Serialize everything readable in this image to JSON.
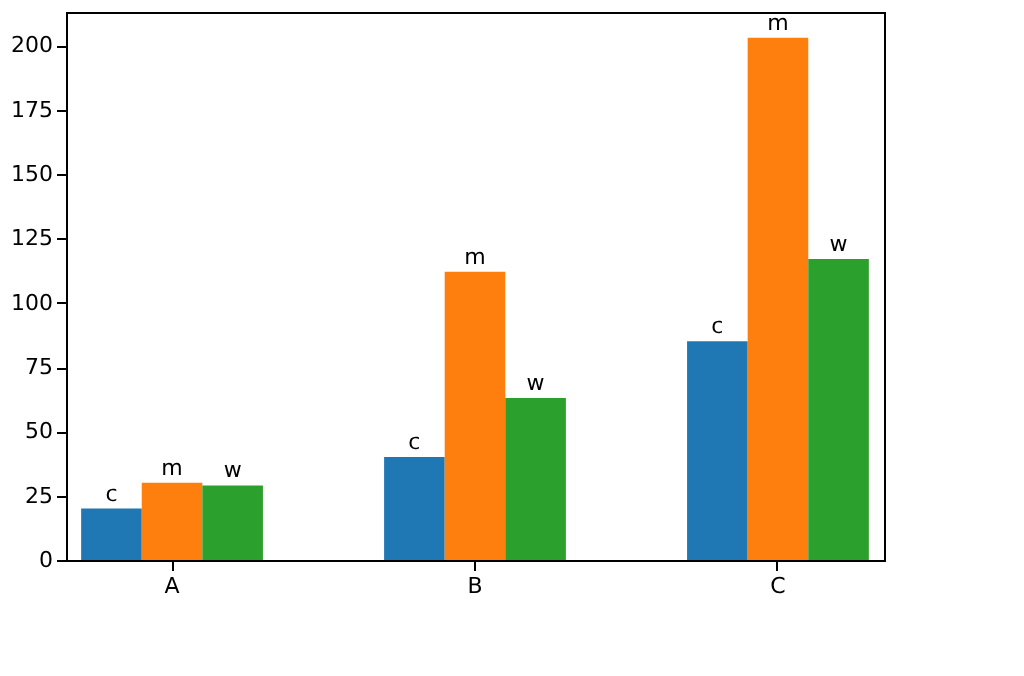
{
  "chart_data": {
    "type": "bar",
    "categories": [
      "A",
      "B",
      "C"
    ],
    "series": [
      {
        "name": "c",
        "color": "#1f77b4",
        "values": [
          20,
          40,
          85
        ]
      },
      {
        "name": "m",
        "color": "#ff7f0e",
        "values": [
          30,
          112,
          203
        ]
      },
      {
        "name": "w",
        "color": "#2ca02c",
        "values": [
          29,
          63,
          117
        ]
      }
    ],
    "ylim": [
      0,
      213
    ],
    "yticks": [
      0,
      25,
      50,
      75,
      100,
      125,
      150,
      175,
      200
    ],
    "grid": false,
    "legend": false
  }
}
